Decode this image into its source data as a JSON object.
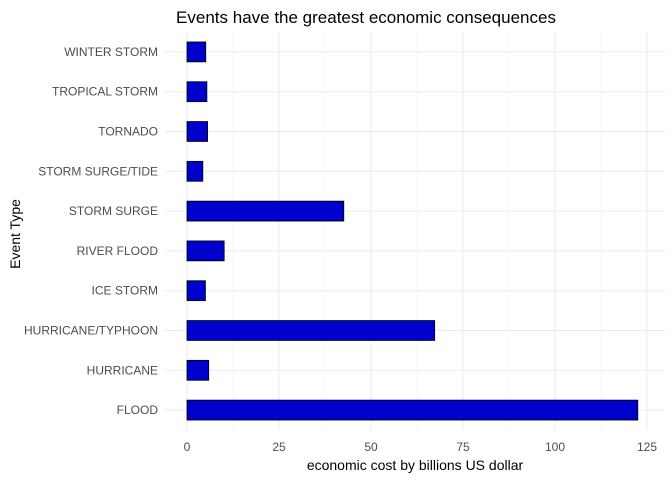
{
  "chart_data": {
    "type": "bar",
    "orientation": "horizontal",
    "title": "Events have the greatest economic consequences",
    "xlabel": "economic cost by billions US dollar",
    "ylabel": "Event Type",
    "categories": [
      "FLOOD",
      "HURRICANE",
      "HURRICANE/TYPHOON",
      "ICE STORM",
      "RIVER FLOOD",
      "STORM SURGE",
      "STORM SURGE/TIDE",
      "TORNADO",
      "TROPICAL STORM",
      "WINTER STORM"
    ],
    "values": [
      122.5,
      5.9,
      67.3,
      5.0,
      10.1,
      42.6,
      4.3,
      5.6,
      5.4,
      5.1
    ],
    "xlim": [
      0,
      126
    ],
    "xticks": [
      0,
      25,
      50,
      75,
      100,
      125
    ],
    "grid": true,
    "bar_color": "#0000CD",
    "bar_edge_color": "#000000"
  }
}
